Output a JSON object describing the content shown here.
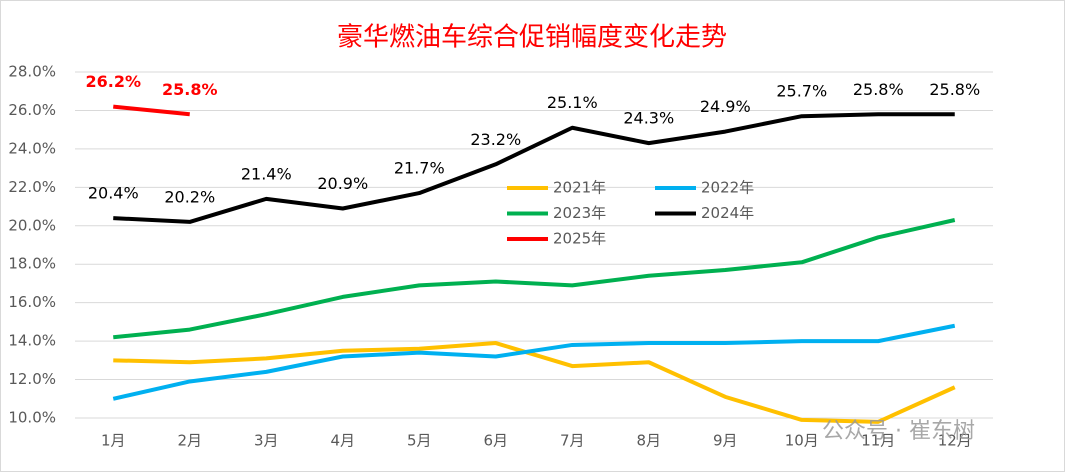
{
  "chart_data": {
    "type": "line",
    "title": "豪华燃油车综合促销幅度变化走势",
    "categories": [
      "1月",
      "2月",
      "3月",
      "4月",
      "5月",
      "6月",
      "7月",
      "8月",
      "9月",
      "10月",
      "11月",
      "12月"
    ],
    "ylim": [
      10,
      28
    ],
    "yticks": [
      {
        "value": 10,
        "label": "10.0%"
      },
      {
        "value": 12,
        "label": "12.0%"
      },
      {
        "value": 14,
        "label": "14.0%"
      },
      {
        "value": 16,
        "label": "16.0%"
      },
      {
        "value": 18,
        "label": "18.0%"
      },
      {
        "value": 20,
        "label": "20.0%"
      },
      {
        "value": 22,
        "label": "22.0%"
      },
      {
        "value": 24,
        "label": "24.0%"
      },
      {
        "value": 26,
        "label": "26.0%"
      },
      {
        "value": 28,
        "label": "28.0%"
      }
    ],
    "grid": true,
    "series": [
      {
        "name": "2021年",
        "color": "#FFC000",
        "values": [
          13.0,
          12.9,
          13.1,
          13.5,
          13.6,
          13.9,
          12.7,
          12.9,
          11.1,
          9.9,
          9.8,
          11.6
        ]
      },
      {
        "name": "2022年",
        "color": "#00B0F0",
        "values": [
          11.0,
          11.9,
          12.4,
          13.2,
          13.4,
          13.2,
          13.8,
          13.9,
          13.9,
          14.0,
          14.0,
          14.8
        ]
      },
      {
        "name": "2023年",
        "color": "#00B050",
        "values": [
          14.2,
          14.6,
          15.4,
          16.3,
          16.9,
          17.1,
          16.9,
          17.4,
          17.7,
          18.1,
          19.4,
          20.3
        ]
      },
      {
        "name": "2024年",
        "color": "#000000",
        "values": [
          20.4,
          20.2,
          21.4,
          20.9,
          21.7,
          23.2,
          25.1,
          24.3,
          24.9,
          25.7,
          25.8,
          25.8
        ],
        "value_labels": [
          "20.4%",
          "20.2%",
          "21.4%",
          "20.9%",
          "21.7%",
          "23.2%",
          "25.1%",
          "24.3%",
          "24.9%",
          "25.7%",
          "25.8%",
          "25.8%"
        ]
      },
      {
        "name": "2025年",
        "color": "#FF0000",
        "values": [
          26.2,
          25.8,
          null,
          null,
          null,
          null,
          null,
          null,
          null,
          null,
          null,
          null
        ],
        "value_labels": [
          "26.2%",
          "25.8%",
          null,
          null,
          null,
          null,
          null,
          null,
          null,
          null,
          null,
          null
        ]
      }
    ],
    "watermark": "公众号 · 崔东树"
  }
}
